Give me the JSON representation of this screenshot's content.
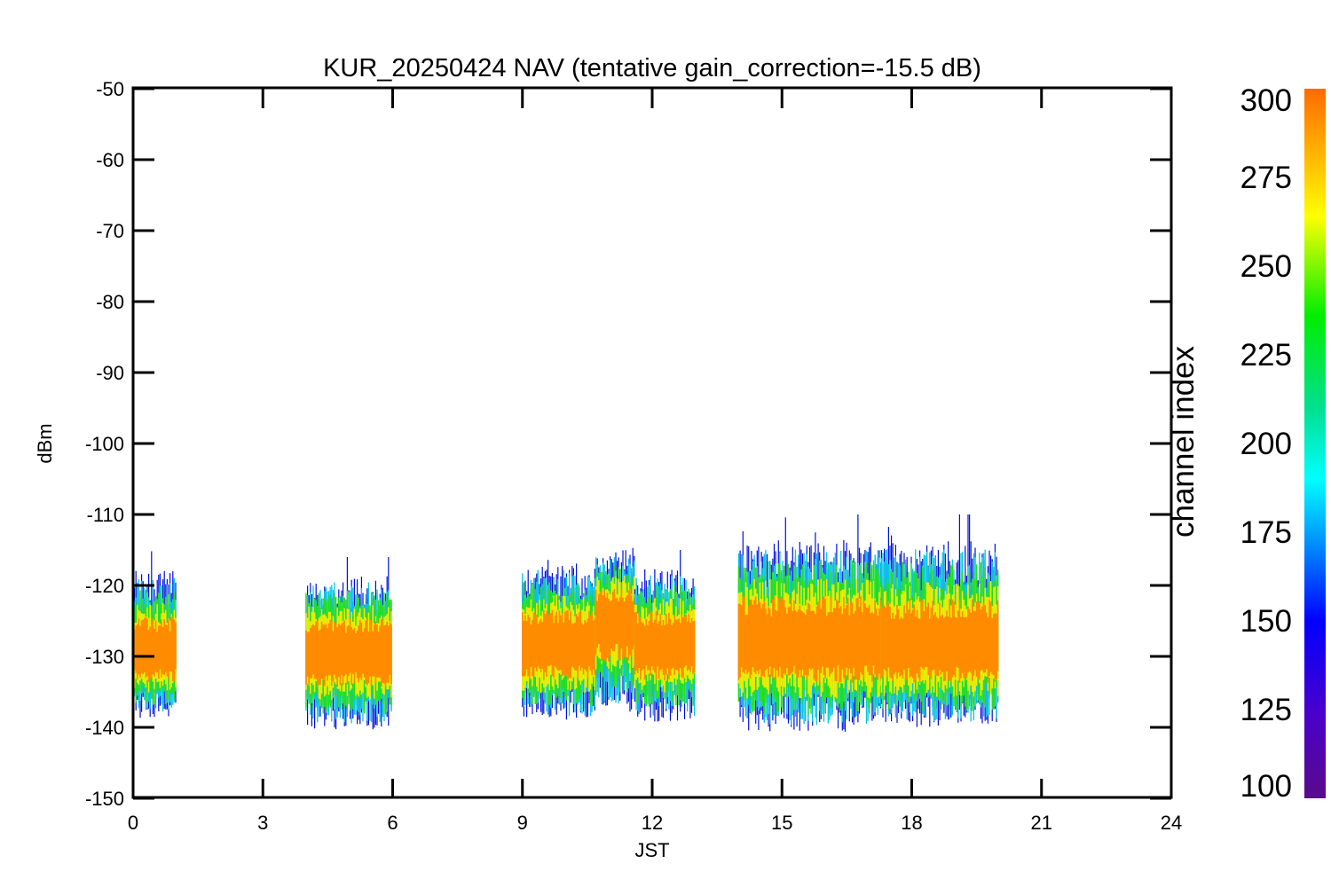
{
  "chart_data": {
    "type": "line",
    "title": "KUR_20250424 NAV (tentative gain_correction=-15.5 dB)",
    "xlabel": "JST",
    "ylabel": "dBm",
    "xlim": [
      0,
      24
    ],
    "ylim": [
      -150,
      -50
    ],
    "x_ticks": [
      "0",
      "3",
      "6",
      "9",
      "12",
      "15",
      "18",
      "21",
      "24"
    ],
    "y_ticks": [
      "-50",
      "-60",
      "-70",
      "-80",
      "-90",
      "-100",
      "-110",
      "-120",
      "-130",
      "-140",
      "-150"
    ],
    "colorbar": {
      "label": "channel index",
      "range": [
        100,
        300
      ],
      "ticks": [
        "300",
        "275",
        "250",
        "225",
        "200",
        "175",
        "150",
        "125",
        "100"
      ],
      "colormap": "rainbow"
    },
    "segments": [
      {
        "x_start": 0.0,
        "x_end": 1.0,
        "center_dBm": -129.5,
        "low_dBm": -141,
        "high_dBm": -115
      },
      {
        "x_start": 4.0,
        "x_end": 6.0,
        "center_dBm": -129.5,
        "low_dBm": -143,
        "high_dBm": -116
      },
      {
        "x_start": 9.0,
        "x_end": 10.7,
        "center_dBm": -128.5,
        "low_dBm": -142,
        "high_dBm": -114
      },
      {
        "x_start": 10.7,
        "x_end": 11.6,
        "center_dBm": -125,
        "low_dBm": -141,
        "high_dBm": -112
      },
      {
        "x_start": 11.6,
        "x_end": 13.0,
        "center_dBm": -128.5,
        "low_dBm": -142,
        "high_dBm": -115
      },
      {
        "x_start": 14.0,
        "x_end": 17.3,
        "center_dBm": -128,
        "low_dBm": -144,
        "high_dBm": -110
      },
      {
        "x_start": 17.3,
        "x_end": 20.0,
        "center_dBm": -128.5,
        "low_dBm": -143,
        "high_dBm": -110
      }
    ],
    "grid": false,
    "legend": "colorbar-right"
  }
}
